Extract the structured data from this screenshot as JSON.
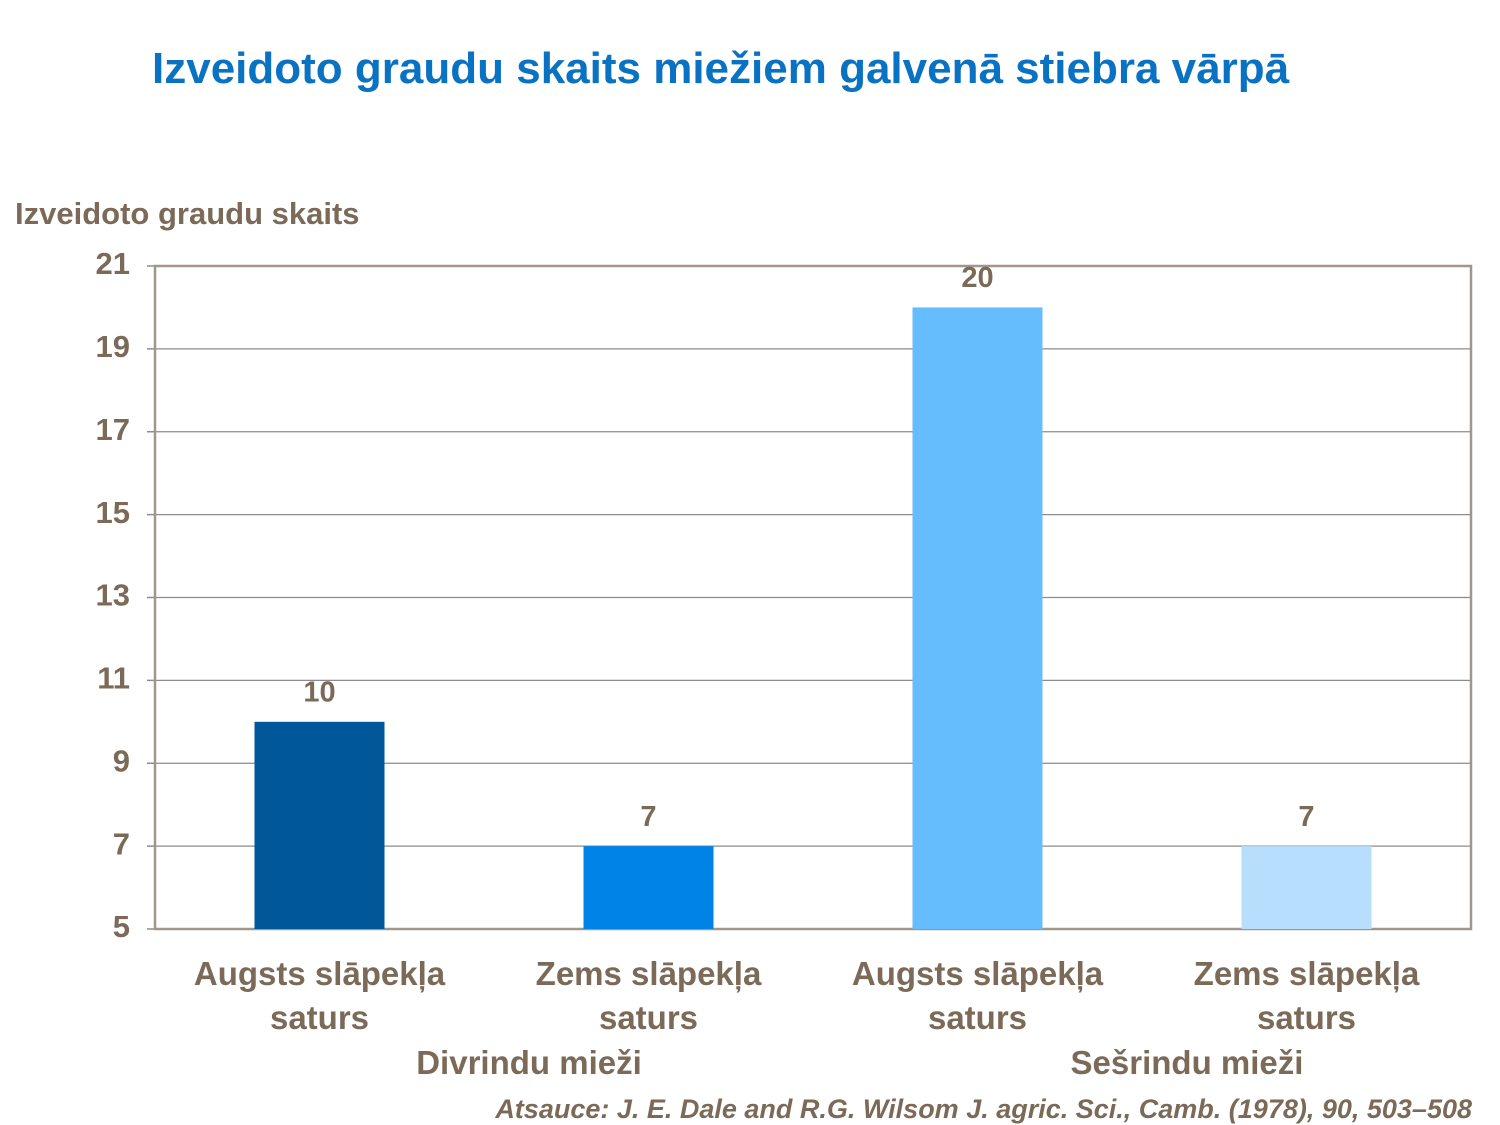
{
  "chart_data": {
    "type": "bar",
    "title": "Izveidoto graudu skaits miežiem galvenā stiebra vārpā",
    "y_label": "Izveidoto graudu skaits",
    "categories": [
      "Augsts slāpekļa saturs",
      "Zems slāpekļa saturs",
      "Augsts slāpekļa saturs",
      "Zems slāpekļa saturs"
    ],
    "values": [
      10,
      7,
      20,
      7
    ],
    "colors": [
      "#00579a",
      "#0083e6",
      "#66bdfe",
      "#b8defe"
    ],
    "groups": [
      {
        "name": "Divrindu mieži",
        "size": 2
      },
      {
        "name": "Sešrindu mieži",
        "size": 2
      }
    ],
    "ylim": [
      5,
      21
    ],
    "yticks": [
      5,
      7,
      9,
      11,
      13,
      15,
      17,
      19,
      21
    ],
    "grid": true,
    "source": "Atsauce: J. E. Dale and R.G. Wilsom  J. agric. Sci., Camb. (1978), 90, 503–508"
  }
}
